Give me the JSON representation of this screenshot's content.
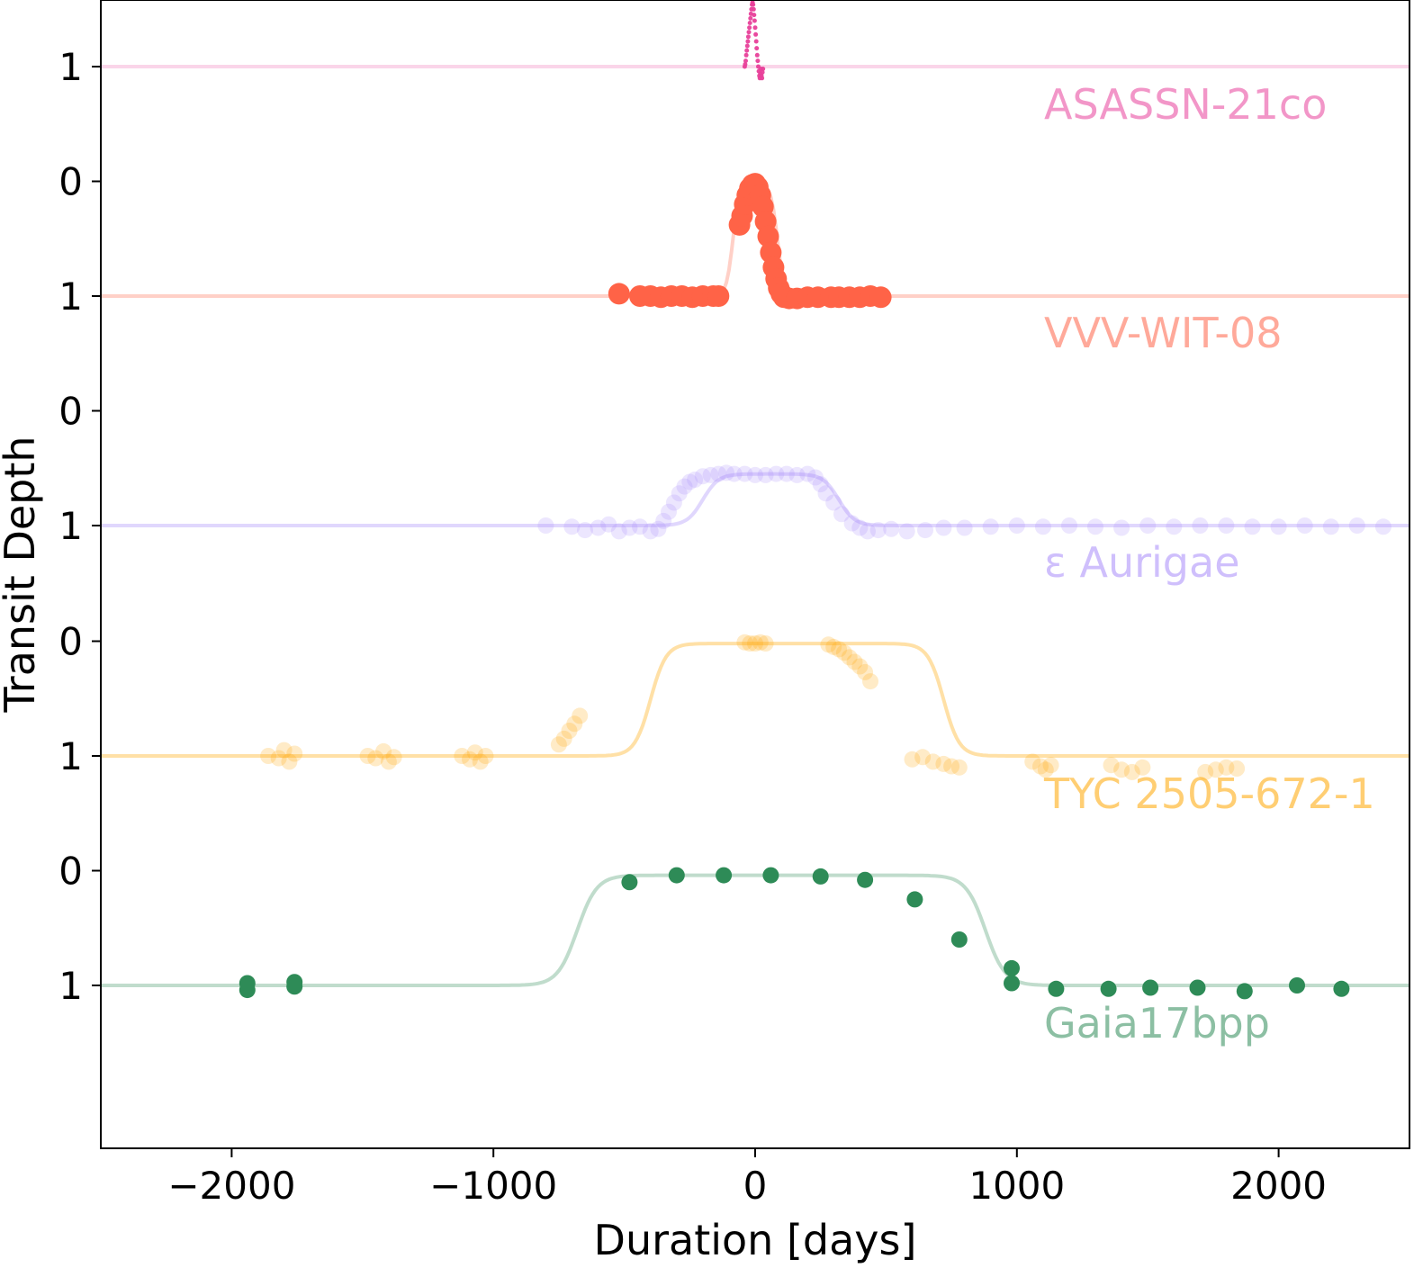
{
  "chart_data": {
    "type": "scatter",
    "xlabel": "Duration [days]",
    "ylabel": "Transit Depth",
    "xlim": [
      -2500,
      2500
    ],
    "x_ticks": [
      -2000,
      -1000,
      0,
      1000,
      2000
    ],
    "x_tick_labels": [
      "−2000",
      "−1000",
      "0",
      "1000",
      "2000"
    ],
    "panel_tick_labels": [
      "0",
      "1"
    ],
    "grid": false,
    "legend": "none",
    "series": [
      {
        "name": "ASASSN-21co",
        "color": "#e8409a",
        "model": {
          "t0": -20,
          "full_depth": 1.0,
          "half_width": 40,
          "edge": 12
        },
        "observations": [
          [
            -40,
            1.0
          ],
          [
            -38,
            0.98
          ],
          [
            -36,
            0.95
          ],
          [
            -34,
            0.9
          ],
          [
            -32,
            0.86
          ],
          [
            -30,
            0.82
          ],
          [
            -28,
            0.78
          ],
          [
            -26,
            0.74
          ],
          [
            -24,
            0.7
          ],
          [
            -22,
            0.66
          ],
          [
            -20,
            0.62
          ],
          [
            -18,
            0.58
          ],
          [
            -16,
            0.54
          ],
          [
            -14,
            0.5
          ],
          [
            -12,
            0.46
          ],
          [
            -10,
            0.44
          ],
          [
            -8,
            0.46
          ],
          [
            -6,
            0.5
          ],
          [
            -4,
            0.55
          ],
          [
            -2,
            0.6
          ],
          [
            0,
            0.66
          ],
          [
            2,
            0.72
          ],
          [
            4,
            0.78
          ],
          [
            6,
            0.84
          ],
          [
            8,
            0.9
          ],
          [
            10,
            0.95
          ],
          [
            12,
            1.0
          ],
          [
            14,
            1.04
          ],
          [
            16,
            1.08
          ],
          [
            18,
            1.1
          ],
          [
            20,
            1.06
          ],
          [
            22,
            1.02
          ],
          [
            24,
            1.08
          ],
          [
            26,
            1.1
          ],
          [
            28,
            1.05
          ],
          [
            30,
            1.02
          ]
        ]
      },
      {
        "name": "VVV-WIT-08",
        "color": "#ff6347",
        "model": {
          "t0": 0,
          "full_depth": 0.02,
          "half_width": 85,
          "edge": 50
        },
        "observations": [
          [
            -520,
            0.98
          ],
          [
            -440,
            1.0
          ],
          [
            -400,
            1.0
          ],
          [
            -360,
            1.01
          ],
          [
            -320,
            1.0
          ],
          [
            -280,
            1.0
          ],
          [
            -240,
            1.01
          ],
          [
            -200,
            1.0
          ],
          [
            -160,
            1.0
          ],
          [
            -140,
            1.0
          ],
          [
            -60,
            0.38
          ],
          [
            -50,
            0.3
          ],
          [
            -40,
            0.2
          ],
          [
            -30,
            0.12
          ],
          [
            -20,
            0.06
          ],
          [
            -10,
            0.03
          ],
          [
            0,
            0.02
          ],
          [
            10,
            0.05
          ],
          [
            20,
            0.12
          ],
          [
            30,
            0.22
          ],
          [
            40,
            0.35
          ],
          [
            50,
            0.48
          ],
          [
            60,
            0.62
          ],
          [
            70,
            0.75
          ],
          [
            80,
            0.85
          ],
          [
            90,
            0.93
          ],
          [
            100,
            0.98
          ],
          [
            110,
            1.01
          ],
          [
            130,
            1.02
          ],
          [
            160,
            1.02
          ],
          [
            200,
            1.01
          ],
          [
            240,
            1.01
          ],
          [
            290,
            1.01
          ],
          [
            320,
            1.01
          ],
          [
            360,
            1.01
          ],
          [
            400,
            1.01
          ],
          [
            440,
            1.0
          ],
          [
            480,
            1.01
          ]
        ]
      },
      {
        "name": "ε Aurigae",
        "color": "#a78bfa",
        "model": {
          "t0": 60,
          "full_depth": 0.55,
          "half_width": 260,
          "edge": 120
        },
        "observations": [
          [
            -800,
            1.0
          ],
          [
            -700,
            1.01
          ],
          [
            -650,
            1.04
          ],
          [
            -600,
            1.02
          ],
          [
            -560,
            0.99
          ],
          [
            -520,
            1.05
          ],
          [
            -480,
            1.02
          ],
          [
            -440,
            1.01
          ],
          [
            -400,
            1.05
          ],
          [
            -370,
            1.03
          ],
          [
            -350,
            0.96
          ],
          [
            -330,
            0.88
          ],
          [
            -310,
            0.8
          ],
          [
            -290,
            0.72
          ],
          [
            -270,
            0.66
          ],
          [
            -250,
            0.62
          ],
          [
            -230,
            0.6
          ],
          [
            -200,
            0.57
          ],
          [
            -170,
            0.56
          ],
          [
            -140,
            0.55
          ],
          [
            -110,
            0.54
          ],
          [
            -80,
            0.55
          ],
          [
            -40,
            0.55
          ],
          [
            0,
            0.56
          ],
          [
            40,
            0.56
          ],
          [
            80,
            0.55
          ],
          [
            120,
            0.55
          ],
          [
            160,
            0.56
          ],
          [
            200,
            0.55
          ],
          [
            230,
            0.58
          ],
          [
            250,
            0.64
          ],
          [
            270,
            0.72
          ],
          [
            300,
            0.8
          ],
          [
            330,
            0.9
          ],
          [
            370,
            0.98
          ],
          [
            400,
            1.02
          ],
          [
            430,
            1.05
          ],
          [
            470,
            1.04
          ],
          [
            520,
            1.03
          ],
          [
            580,
            1.05
          ],
          [
            650,
            1.04
          ],
          [
            720,
            1.02
          ],
          [
            800,
            1.02
          ],
          [
            900,
            1.01
          ],
          [
            1000,
            1.0
          ],
          [
            1100,
            1.01
          ],
          [
            1200,
            1.0
          ],
          [
            1300,
            1.01
          ],
          [
            1400,
            1.02
          ],
          [
            1500,
            1.0
          ],
          [
            1600,
            1.01
          ],
          [
            1700,
            1.0
          ],
          [
            1800,
            1.0
          ],
          [
            1900,
            1.01
          ],
          [
            2000,
            1.01
          ],
          [
            2100,
            1.0
          ],
          [
            2200,
            1.01
          ],
          [
            2300,
            1.0
          ],
          [
            2400,
            1.01
          ]
        ]
      },
      {
        "name": "TYC 2505-672-1",
        "color": "#ffa500",
        "model": {
          "t0": 160,
          "full_depth": 0.02,
          "half_width": 560,
          "edge": 120
        },
        "observations": [
          [
            -1860,
            1.0
          ],
          [
            -1820,
            1.02
          ],
          [
            -1800,
            0.95
          ],
          [
            -1780,
            1.05
          ],
          [
            -1760,
            0.98
          ],
          [
            -1480,
            1.0
          ],
          [
            -1450,
            1.02
          ],
          [
            -1420,
            0.96
          ],
          [
            -1400,
            1.05
          ],
          [
            -1380,
            1.01
          ],
          [
            -1120,
            1.0
          ],
          [
            -1090,
            1.03
          ],
          [
            -1070,
            0.97
          ],
          [
            -1050,
            1.05
          ],
          [
            -1030,
            1.0
          ],
          [
            -750,
            0.9
          ],
          [
            -730,
            0.85
          ],
          [
            -710,
            0.78
          ],
          [
            -690,
            0.72
          ],
          [
            -670,
            0.65
          ],
          [
            -40,
            0.01
          ],
          [
            -20,
            0.02
          ],
          [
            0,
            0.02
          ],
          [
            20,
            0.01
          ],
          [
            40,
            0.02
          ],
          [
            280,
            0.03
          ],
          [
            300,
            0.05
          ],
          [
            320,
            0.07
          ],
          [
            340,
            0.1
          ],
          [
            360,
            0.14
          ],
          [
            380,
            0.18
          ],
          [
            400,
            0.22
          ],
          [
            420,
            0.27
          ],
          [
            440,
            0.35
          ],
          [
            600,
            1.03
          ],
          [
            640,
            1.01
          ],
          [
            680,
            1.05
          ],
          [
            720,
            1.07
          ],
          [
            750,
            1.09
          ],
          [
            780,
            1.1
          ],
          [
            1060,
            1.05
          ],
          [
            1090,
            1.09
          ],
          [
            1110,
            1.12
          ],
          [
            1130,
            1.08
          ],
          [
            1360,
            1.08
          ],
          [
            1400,
            1.12
          ],
          [
            1440,
            1.14
          ],
          [
            1480,
            1.1
          ],
          [
            1720,
            1.14
          ],
          [
            1760,
            1.12
          ],
          [
            1800,
            1.1
          ],
          [
            1840,
            1.11
          ]
        ]
      },
      {
        "name": "Gaia17bpp",
        "color": "#2e8b57",
        "model": {
          "t0": 100,
          "full_depth": 0.04,
          "half_width": 780,
          "edge": 150
        },
        "observations": [
          [
            -1940,
            1.04
          ],
          [
            -1940,
            0.98
          ],
          [
            -1760,
            0.97
          ],
          [
            -1760,
            1.01
          ],
          [
            -480,
            0.1
          ],
          [
            -300,
            0.04
          ],
          [
            -120,
            0.04
          ],
          [
            60,
            0.04
          ],
          [
            250,
            0.05
          ],
          [
            420,
            0.08
          ],
          [
            610,
            0.25
          ],
          [
            780,
            0.6
          ],
          [
            980,
            0.98
          ],
          [
            980,
            0.85
          ],
          [
            1150,
            1.03
          ],
          [
            1350,
            1.03
          ],
          [
            1510,
            1.02
          ],
          [
            1690,
            1.02
          ],
          [
            1870,
            1.05
          ],
          [
            2070,
            1.0
          ],
          [
            2240,
            1.03
          ]
        ]
      }
    ]
  }
}
